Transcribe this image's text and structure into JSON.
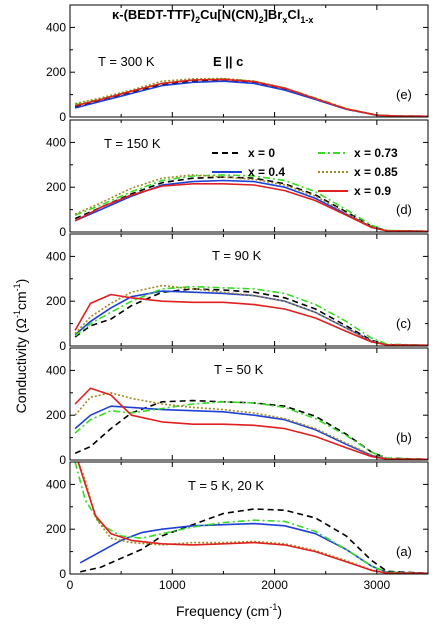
{
  "chart_data": {
    "type": "line",
    "title_parts": {
      "pre": "κ-(BEDT-TTF)",
      "s1": "2",
      "mid": "Cu[N(CN)",
      "s2": "2",
      "mid2": "]Br",
      "s3": "x",
      "mid3": "Cl",
      "s4": "1-x"
    },
    "subtitle": "E || c",
    "xlabel": "Frequency (cm",
    "xlabel_sup": "-1",
    "xlabel_end": ")",
    "ylabel": "Conductivity (Ω",
    "ylabel_sup1": "-1",
    "ylabel_mid": "cm",
    "ylabel_sup2": "-1",
    "ylabel_end": ")",
    "xlim": [
      0,
      3500
    ],
    "ylim": [
      0,
      500
    ],
    "x_ticks": [
      0,
      1000,
      2000,
      3000
    ],
    "x_tick_labels": [
      "0",
      "1000",
      "2000",
      "3000"
    ],
    "y_ticks": [
      0,
      200,
      400
    ],
    "y_tick_labels": [
      "0",
      "200",
      "400"
    ],
    "legend_items": [
      {
        "label": "x = 0",
        "color": "#000000",
        "dash": "6,4"
      },
      {
        "label": "x = 0.4",
        "color": "#1f3fd6",
        "dash": ""
      },
      {
        "label": "x = 0.73",
        "color": "#33dd22",
        "dash": "7,3,2,3"
      },
      {
        "label": "x = 0.85",
        "color": "#a08a1e",
        "dash": "2,2"
      },
      {
        "label": "x = 0.9",
        "color": "#e02020",
        "dash": ""
      }
    ],
    "panels": [
      {
        "temp_label": "T = 300 K",
        "letter": "(e)",
        "series": [
          {
            "key": "x=0",
            "x": [
              50,
              300,
              600,
              900,
              1200,
              1500,
              1800,
              2100,
              2400,
              2700,
              3000,
              3200,
              3500
            ],
            "y": [
              45,
              75,
              110,
              145,
              160,
              165,
              155,
              125,
              80,
              35,
              8,
              4,
              3
            ]
          },
          {
            "key": "x=0.4",
            "x": [
              50,
              300,
              600,
              900,
              1200,
              1500,
              1800,
              2100,
              2400,
              2700,
              3000,
              3200,
              3500
            ],
            "y": [
              40,
              70,
              105,
              140,
              155,
              160,
              150,
              120,
              78,
              35,
              8,
              4,
              3
            ]
          },
          {
            "key": "x=0.73",
            "x": [
              50,
              300,
              600,
              900,
              1200,
              1500,
              1800,
              2100,
              2400,
              2700,
              3000,
              3200,
              3500
            ],
            "y": [
              55,
              80,
              115,
              150,
              165,
              170,
              160,
              130,
              85,
              38,
              9,
              4,
              3
            ]
          },
          {
            "key": "x=0.85",
            "x": [
              50,
              300,
              600,
              900,
              1200,
              1500,
              1800,
              2100,
              2400,
              2700,
              3000,
              3200,
              3500
            ],
            "y": [
              60,
              85,
              120,
              160,
              170,
              172,
              160,
              130,
              82,
              36,
              8,
              4,
              3
            ]
          },
          {
            "key": "x=0.9",
            "x": [
              50,
              300,
              600,
              900,
              1200,
              1500,
              1800,
              2100,
              2400,
              2700,
              3000,
              3200,
              3500
            ],
            "y": [
              50,
              78,
              115,
              150,
              165,
              168,
              158,
              128,
              82,
              36,
              8,
              4,
              3
            ]
          }
        ]
      },
      {
        "temp_label": "T = 150 K",
        "letter": "(d)",
        "series": [
          {
            "key": "x=0",
            "x": [
              50,
              300,
              600,
              900,
              1200,
              1500,
              1800,
              2100,
              2400,
              2700,
              2950,
              3100,
              3500
            ],
            "y": [
              60,
              110,
              170,
              220,
              240,
              245,
              240,
              215,
              165,
              90,
              25,
              6,
              3
            ]
          },
          {
            "key": "x=0.4",
            "x": [
              50,
              300,
              600,
              900,
              1200,
              1500,
              1800,
              2100,
              2400,
              2700,
              2950,
              3100,
              3500
            ],
            "y": [
              50,
              100,
              160,
              210,
              225,
              230,
              225,
              200,
              150,
              80,
              22,
              5,
              3
            ]
          },
          {
            "key": "x=0.73",
            "x": [
              50,
              300,
              600,
              900,
              1200,
              1500,
              1800,
              2100,
              2400,
              2700,
              2950,
              3100,
              3500
            ],
            "y": [
              75,
              120,
              180,
              230,
              250,
              255,
              250,
              230,
              180,
              100,
              30,
              7,
              3
            ]
          },
          {
            "key": "x=0.85",
            "x": [
              50,
              300,
              600,
              900,
              1200,
              1500,
              1800,
              2100,
              2400,
              2700,
              2950,
              3100,
              3500
            ],
            "y": [
              80,
              130,
              195,
              240,
              255,
              245,
              235,
              210,
              160,
              85,
              24,
              6,
              3
            ]
          },
          {
            "key": "x=0.9",
            "x": [
              50,
              300,
              600,
              900,
              1200,
              1500,
              1800,
              2100,
              2400,
              2700,
              2950,
              3100,
              3500
            ],
            "y": [
              50,
              110,
              165,
              205,
              215,
              215,
              210,
              185,
              140,
              75,
              20,
              5,
              3
            ]
          }
        ]
      },
      {
        "temp_label": "T = 90 K",
        "letter": "(c)",
        "series": [
          {
            "key": "x=0",
            "x": [
              50,
              200,
              400,
              600,
              900,
              1200,
              1500,
              1800,
              2100,
              2400,
              2700,
              2950,
              3100,
              3500
            ],
            "y": [
              40,
              90,
              120,
              180,
              240,
              255,
              250,
              240,
              215,
              165,
              90,
              25,
              6,
              3
            ]
          },
          {
            "key": "x=0.4",
            "x": [
              50,
              200,
              400,
              600,
              900,
              1200,
              1500,
              1800,
              2100,
              2400,
              2700,
              2950,
              3100,
              3500
            ],
            "y": [
              50,
              110,
              170,
              220,
              245,
              240,
              235,
              225,
              200,
              150,
              80,
              22,
              5,
              3
            ]
          },
          {
            "key": "x=0.73",
            "x": [
              50,
              200,
              400,
              600,
              900,
              1200,
              1500,
              1800,
              2100,
              2400,
              2700,
              2950,
              3100,
              3500
            ],
            "y": [
              45,
              100,
              150,
              200,
              255,
              265,
              260,
              255,
              235,
              185,
              110,
              35,
              8,
              3
            ]
          },
          {
            "key": "x=0.85",
            "x": [
              50,
              200,
              400,
              600,
              900,
              1200,
              1500,
              1800,
              2100,
              2400,
              2700,
              2950,
              3100,
              3500
            ],
            "y": [
              55,
              130,
              190,
              240,
              270,
              255,
              240,
              225,
              200,
              150,
              80,
              22,
              5,
              3
            ]
          },
          {
            "key": "x=0.9",
            "x": [
              50,
              200,
              400,
              600,
              900,
              1200,
              1500,
              1800,
              2100,
              2400,
              2700,
              2950,
              3100,
              3500
            ],
            "y": [
              70,
              190,
              230,
              215,
              200,
              195,
              195,
              185,
              165,
              125,
              65,
              18,
              5,
              3
            ]
          }
        ]
      },
      {
        "temp_label": "T = 50 K",
        "letter": "(b)",
        "series": [
          {
            "key": "x=0",
            "x": [
              50,
              200,
              400,
              600,
              900,
              1200,
              1500,
              1800,
              2100,
              2400,
              2700,
              2950,
              3100,
              3500
            ],
            "y": [
              30,
              60,
              140,
              210,
              260,
              265,
              260,
              255,
              240,
              195,
              115,
              35,
              8,
              3
            ]
          },
          {
            "key": "x=0.4",
            "x": [
              50,
              200,
              400,
              600,
              900,
              1200,
              1500,
              1800,
              2100,
              2400,
              2700,
              2950,
              3100,
              3500
            ],
            "y": [
              140,
              200,
              240,
              235,
              225,
              220,
              215,
              200,
              180,
              135,
              70,
              20,
              5,
              3
            ]
          },
          {
            "key": "x=0.73",
            "x": [
              50,
              200,
              400,
              600,
              900,
              1200,
              1500,
              1800,
              2100,
              2400,
              2700,
              2950,
              3100,
              3500
            ],
            "y": [
              120,
              180,
              220,
              210,
              230,
              250,
              260,
              255,
              235,
              185,
              110,
              35,
              8,
              3
            ]
          },
          {
            "key": "x=0.85",
            "x": [
              50,
              200,
              400,
              600,
              900,
              1200,
              1500,
              1800,
              2100,
              2400,
              2700,
              2950,
              3100,
              3500
            ],
            "y": [
              200,
              280,
              300,
              275,
              250,
              235,
              225,
              210,
              185,
              140,
              75,
              22,
              5,
              3
            ]
          },
          {
            "key": "x=0.9",
            "x": [
              50,
              200,
              400,
              600,
              900,
              1200,
              1500,
              1800,
              2100,
              2400,
              2700,
              2950,
              3100,
              3500
            ],
            "y": [
              250,
              320,
              290,
              200,
              170,
              160,
              160,
              155,
              140,
              105,
              55,
              15,
              4,
              3
            ]
          }
        ]
      },
      {
        "temp_label": "T = 5 K, 20 K",
        "letter": "(a)",
        "series": [
          {
            "key": "x=0",
            "x": [
              100,
              300,
              500,
              700,
              900,
              1200,
              1500,
              1800,
              2100,
              2400,
              2700,
              2950,
              3100,
              3500
            ],
            "y": [
              10,
              30,
              70,
              110,
              170,
              220,
              270,
              290,
              285,
              250,
              170,
              60,
              12,
              3
            ]
          },
          {
            "key": "x=0.4",
            "x": [
              100,
              300,
              500,
              700,
              900,
              1200,
              1500,
              1800,
              2100,
              2400,
              2700,
              2950,
              3100,
              3500
            ],
            "y": [
              50,
              100,
              150,
              185,
              200,
              215,
              220,
              225,
              215,
              180,
              110,
              35,
              8,
              3
            ]
          },
          {
            "key": "x=0.73",
            "x": [
              50,
              150,
              300,
              500,
              700,
              900,
              1200,
              1500,
              1800,
              2100,
              2400,
              2700,
              2950,
              3100,
              3500
            ],
            "y": [
              500,
              330,
              220,
              170,
              160,
              180,
              210,
              230,
              240,
              235,
              190,
              110,
              35,
              8,
              3
            ]
          },
          {
            "key": "x=0.85",
            "x": [
              80,
              150,
              250,
              400,
              600,
              900,
              1200,
              1500,
              1800,
              2100,
              2400,
              2700,
              2950,
              3100,
              3500
            ],
            "y": [
              500,
              420,
              250,
              160,
              140,
              130,
              140,
              140,
              145,
              135,
              105,
              60,
              18,
              4,
              3
            ]
          },
          {
            "key": "x=0.9",
            "x": [
              80,
              150,
              250,
              400,
              600,
              900,
              1200,
              1500,
              1800,
              2100,
              2400,
              2700,
              2950,
              3100,
              3500
            ],
            "y": [
              500,
              400,
              260,
              180,
              150,
              135,
              130,
              135,
              140,
              130,
              100,
              55,
              16,
              4,
              3
            ]
          }
        ]
      }
    ]
  }
}
